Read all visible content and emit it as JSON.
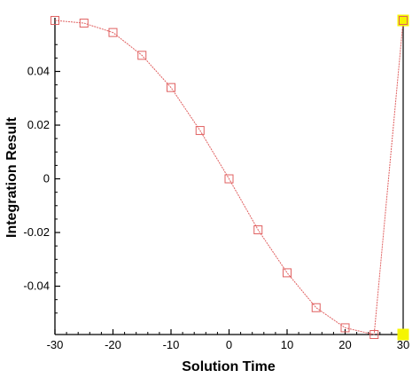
{
  "chart_data": {
    "type": "line",
    "title": "",
    "xlabel": "Solution Time",
    "ylabel": "Integration Result",
    "xlim": [
      -30,
      30
    ],
    "ylim": [
      -0.058,
      0.06
    ],
    "xticks": [
      -30,
      -20,
      -10,
      0,
      10,
      20,
      30
    ],
    "xtick_labels": [
      "-30",
      "-20",
      "-10",
      "0",
      "10",
      "20",
      "30"
    ],
    "yticks": [
      -0.04,
      -0.02,
      0,
      0.02,
      0.04
    ],
    "ytick_labels": [
      "-0.04",
      "-0.02",
      "0",
      "0.02",
      "0.04"
    ],
    "grid": false,
    "legend": "none",
    "series": [
      {
        "marker": "square",
        "color": "#e06060",
        "x": [
          -30,
          -25,
          -20,
          -15,
          -10,
          -5,
          0,
          5,
          10,
          15,
          20,
          25,
          30
        ],
        "y": [
          0.059,
          0.058,
          0.0545,
          0.046,
          0.034,
          0.018,
          0.0,
          -0.019,
          -0.035,
          -0.048,
          -0.0555,
          -0.058,
          0.059
        ]
      }
    ],
    "highlights": {
      "color": "#f5f500",
      "x": 30,
      "y": [
        0.059,
        -0.058
      ],
      "connector_color": "#000000"
    }
  }
}
